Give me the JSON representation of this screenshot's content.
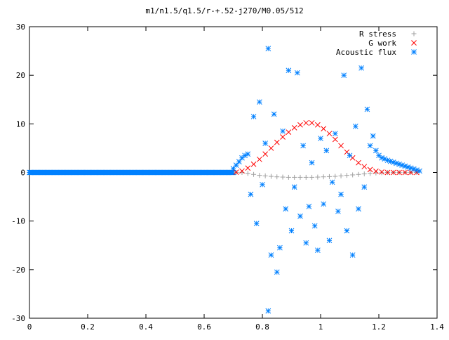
{
  "chart_data": {
    "type": "scatter",
    "title": "m1/n1.5/q1.5/r-+.52-j270/M0.05/512",
    "xlabel": "",
    "ylabel": "",
    "xlim": [
      0,
      1.4
    ],
    "ylim": [
      -30,
      30
    ],
    "x_ticks": [
      "0",
      "0.2",
      "0.4",
      "0.6",
      "0.8",
      "1",
      "1.2",
      "1.4"
    ],
    "y_ticks": [
      "-30",
      "-20",
      "-10",
      "0",
      "10",
      "20",
      "30"
    ],
    "grid": false,
    "legend": "top-right",
    "series": [
      {
        "name": "R stress",
        "marker": "plus",
        "color": "#a0a0a0",
        "points": [
          [
            0.71,
            0
          ],
          [
            0.73,
            0
          ],
          [
            0.75,
            -0.2
          ],
          [
            0.77,
            -0.4
          ],
          [
            0.79,
            -0.6
          ],
          [
            0.81,
            -0.7
          ],
          [
            0.83,
            -0.8
          ],
          [
            0.85,
            -0.9
          ],
          [
            0.87,
            -0.95
          ],
          [
            0.89,
            -1.0
          ],
          [
            0.91,
            -1.0
          ],
          [
            0.93,
            -1.0
          ],
          [
            0.95,
            -1.0
          ],
          [
            0.97,
            -1.0
          ],
          [
            0.99,
            -0.95
          ],
          [
            1.01,
            -0.9
          ],
          [
            1.03,
            -0.85
          ],
          [
            1.05,
            -0.8
          ],
          [
            1.07,
            -0.7
          ],
          [
            1.09,
            -0.6
          ],
          [
            1.11,
            -0.5
          ],
          [
            1.13,
            -0.4
          ],
          [
            1.15,
            -0.3
          ],
          [
            1.17,
            -0.2
          ],
          [
            1.19,
            -0.1
          ],
          [
            1.21,
            -0.05
          ],
          [
            1.23,
            0
          ],
          [
            1.25,
            0
          ],
          [
            1.27,
            0
          ],
          [
            1.29,
            0
          ],
          [
            1.31,
            0
          ],
          [
            1.33,
            0
          ]
        ]
      },
      {
        "name": "G work",
        "marker": "cross",
        "color": "#ff0000",
        "points": [
          [
            0.71,
            0.05
          ],
          [
            0.73,
            0.3
          ],
          [
            0.75,
            0.9
          ],
          [
            0.77,
            1.7
          ],
          [
            0.79,
            2.7
          ],
          [
            0.81,
            3.8
          ],
          [
            0.83,
            5.0
          ],
          [
            0.85,
            6.2
          ],
          [
            0.87,
            7.3
          ],
          [
            0.89,
            8.3
          ],
          [
            0.91,
            9.2
          ],
          [
            0.93,
            9.8
          ],
          [
            0.95,
            10.2
          ],
          [
            0.97,
            10.2
          ],
          [
            0.99,
            9.8
          ],
          [
            1.01,
            9.0
          ],
          [
            1.03,
            8.0
          ],
          [
            1.05,
            6.8
          ],
          [
            1.07,
            5.5
          ],
          [
            1.09,
            4.2
          ],
          [
            1.11,
            3.0
          ],
          [
            1.13,
            2.0
          ],
          [
            1.15,
            1.2
          ],
          [
            1.17,
            0.6
          ],
          [
            1.19,
            0.25
          ],
          [
            1.21,
            0.1
          ],
          [
            1.23,
            0
          ],
          [
            1.25,
            0
          ],
          [
            1.27,
            0
          ],
          [
            1.29,
            0
          ],
          [
            1.31,
            0
          ],
          [
            1.33,
            0
          ]
        ]
      },
      {
        "name": "Acoustic flux",
        "marker": "star",
        "color": "#0080ff",
        "points": [
          [
            0.7,
            0.8
          ],
          [
            0.71,
            1.5
          ],
          [
            0.72,
            2.2
          ],
          [
            0.73,
            3.0
          ],
          [
            0.74,
            3.5
          ],
          [
            0.75,
            3.8
          ],
          [
            0.76,
            -4.5
          ],
          [
            0.77,
            11.5
          ],
          [
            0.78,
            -10.5
          ],
          [
            0.79,
            14.5
          ],
          [
            0.8,
            -2.5
          ],
          [
            0.81,
            6.0
          ],
          [
            0.82,
            25.5
          ],
          [
            0.82,
            -28.5
          ],
          [
            0.83,
            -17.0
          ],
          [
            0.84,
            12.0
          ],
          [
            0.85,
            -20.5
          ],
          [
            0.86,
            -15.5
          ],
          [
            0.87,
            8.5
          ],
          [
            0.88,
            -7.5
          ],
          [
            0.89,
            21.0
          ],
          [
            0.9,
            -12.0
          ],
          [
            0.91,
            -3.0
          ],
          [
            0.92,
            20.5
          ],
          [
            0.93,
            -9.0
          ],
          [
            0.94,
            5.5
          ],
          [
            0.95,
            -14.5
          ],
          [
            0.96,
            -7.0
          ],
          [
            0.97,
            2.0
          ],
          [
            0.98,
            -11.0
          ],
          [
            0.99,
            -16.0
          ],
          [
            1.0,
            7.0
          ],
          [
            1.01,
            -6.5
          ],
          [
            1.02,
            4.5
          ],
          [
            1.03,
            -14.0
          ],
          [
            1.04,
            -2.0
          ],
          [
            1.05,
            8.0
          ],
          [
            1.06,
            -8.0
          ],
          [
            1.07,
            -4.5
          ],
          [
            1.08,
            20.0
          ],
          [
            1.09,
            -12.0
          ],
          [
            1.1,
            3.5
          ],
          [
            1.11,
            -17.0
          ],
          [
            1.12,
            9.5
          ],
          [
            1.13,
            -7.5
          ],
          [
            1.14,
            21.5
          ],
          [
            1.15,
            -3.0
          ],
          [
            1.16,
            13.0
          ],
          [
            1.17,
            5.5
          ],
          [
            1.18,
            7.5
          ],
          [
            1.19,
            4.5
          ],
          [
            1.2,
            3.5
          ],
          [
            1.21,
            3.0
          ],
          [
            1.22,
            2.8
          ],
          [
            1.23,
            2.5
          ],
          [
            1.24,
            2.3
          ],
          [
            1.25,
            2.1
          ],
          [
            1.26,
            1.9
          ],
          [
            1.27,
            1.7
          ],
          [
            1.28,
            1.5
          ],
          [
            1.29,
            1.3
          ],
          [
            1.3,
            1.1
          ],
          [
            1.31,
            0.9
          ],
          [
            1.32,
            0.7
          ],
          [
            1.33,
            0.5
          ],
          [
            1.34,
            0.3
          ]
        ]
      }
    ]
  }
}
